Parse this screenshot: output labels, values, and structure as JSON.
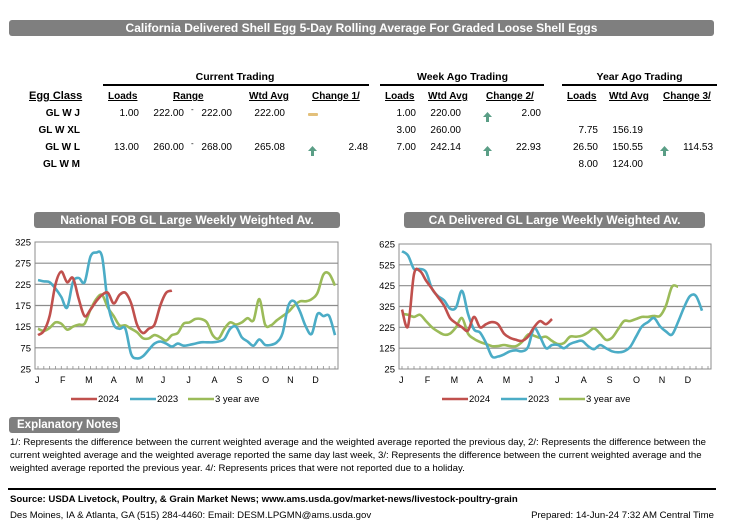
{
  "title": "California Delivered Shell Egg 5-Day Rolling Average For Graded Loose Shell Eggs",
  "table": {
    "groups": [
      "Current Trading",
      "Week Ago Trading",
      "Year Ago Trading"
    ],
    "headers": {
      "egg_class": "Egg Class",
      "current": [
        "Loads",
        "Range",
        "Wtd Avg",
        "Change 1/"
      ],
      "week_ago": [
        "Loads",
        "Wtd Avg",
        "Change 2/"
      ],
      "year_ago": [
        "Loads",
        "Wtd Avg",
        "Change 3/"
      ]
    },
    "range_sep": "-",
    "rows": [
      {
        "class": "GL W J",
        "cur_loads": "1.00",
        "cur_low": "222.00",
        "cur_high": "222.00",
        "cur_wtd": "222.00",
        "cur_change_icon": "unchanged-icon",
        "cur_change": "",
        "wk_loads": "1.00",
        "wk_wtd": "220.00",
        "wk_change_icon": "up-arrow-icon",
        "wk_change": "2.00",
        "yr_loads": "",
        "yr_wtd": "",
        "yr_change_icon": "",
        "yr_change": ""
      },
      {
        "class": "GL W XL",
        "cur_loads": "",
        "cur_low": "",
        "cur_high": "",
        "cur_wtd": "",
        "cur_change_icon": "",
        "cur_change": "",
        "wk_loads": "3.00",
        "wk_wtd": "260.00",
        "wk_change_icon": "",
        "wk_change": "",
        "yr_loads": "7.75",
        "yr_wtd": "156.19",
        "yr_change_icon": "",
        "yr_change": ""
      },
      {
        "class": "GL W L",
        "cur_loads": "13.00",
        "cur_low": "260.00",
        "cur_high": "268.00",
        "cur_wtd": "265.08",
        "cur_change_icon": "up-arrow-icon",
        "cur_change": "2.48",
        "wk_loads": "7.00",
        "wk_wtd": "242.14",
        "wk_change_icon": "up-arrow-icon",
        "wk_change": "22.93",
        "yr_loads": "26.50",
        "yr_wtd": "150.55",
        "yr_change_icon": "up-arrow-icon",
        "yr_change": "114.53"
      },
      {
        "class": "GL W M",
        "cur_loads": "",
        "cur_low": "",
        "cur_high": "",
        "cur_wtd": "",
        "cur_change_icon": "",
        "cur_change": "",
        "wk_loads": "",
        "wk_wtd": "",
        "wk_change_icon": "",
        "wk_change": "",
        "yr_loads": "8.00",
        "yr_wtd": "124.00",
        "yr_change_icon": "",
        "yr_change": ""
      }
    ]
  },
  "colors": {
    "header_bar": "#7f7f7f",
    "series_2024": "#c0504d",
    "series_2023": "#4bacc6",
    "series_3yr": "#9bbb59",
    "up_arrow": "#5a9e86",
    "unchanged": "#e3c07a"
  },
  "chart_data": [
    {
      "type": "line",
      "title": "National FOB GL Large  Weekly Weighted Av.",
      "xlabel": "",
      "ylabel": "",
      "ylim": [
        25,
        325
      ],
      "yticks": [
        "325",
        "275",
        "225",
        "175",
        "125",
        "75",
        "25"
      ],
      "ytick_values": [
        325,
        275,
        225,
        175,
        125,
        75,
        25
      ],
      "month_labels": [
        "J",
        "F",
        "M",
        "A",
        "M",
        "J",
        "J",
        "A",
        "S",
        "O",
        "N",
        "D"
      ],
      "grid": true,
      "legend": "bottom",
      "x_unit": "week",
      "series": [
        {
          "name": "2024",
          "values": [
            105,
            115,
            150,
            225,
            255,
            230,
            240,
            190,
            150,
            165,
            185,
            200,
            205,
            180,
            200,
            205,
            180,
            130,
            110,
            120,
            130,
            175,
            205,
            210
          ]
        },
        {
          "name": "2023",
          "values": [
            235,
            232,
            230,
            215,
            195,
            170,
            230,
            240,
            230,
            290,
            300,
            290,
            180,
            130,
            120,
            120,
            60,
            50,
            55,
            70,
            85,
            90,
            85,
            78,
            85,
            80,
            82,
            85,
            88,
            88,
            88,
            90,
            96,
            120,
            125,
            100,
            90,
            80,
            95,
            82,
            82,
            88,
            110,
            175,
            185,
            160,
            125,
            108,
            155,
            150,
            150,
            105
          ]
        },
        {
          "name": "3 year ave",
          "values": [
            120,
            115,
            122,
            135,
            132,
            118,
            125,
            130,
            132,
            165,
            190,
            200,
            170,
            150,
            128,
            128,
            120,
            112,
            98,
            97,
            105,
            100,
            92,
            105,
            110,
            132,
            135,
            143,
            143,
            135,
            105,
            97,
            120,
            135,
            130,
            135,
            145,
            140,
            190,
            130,
            128,
            140,
            150,
            160,
            175,
            185,
            185,
            190,
            205,
            248,
            250,
            222
          ]
        }
      ]
    },
    {
      "type": "line",
      "title": "CA Delivered GL Large Weekly Weighted Av.",
      "xlabel": "",
      "ylabel": "",
      "ylim": [
        25,
        625
      ],
      "yticks": [
        "625",
        "525",
        "425",
        "325",
        "225",
        "125",
        "25"
      ],
      "ytick_values": [
        625,
        525,
        425,
        325,
        225,
        125,
        25
      ],
      "month_labels": [
        "J",
        "F",
        "M",
        "A",
        "M",
        "J",
        "J",
        "A",
        "S",
        "O",
        "N",
        "D"
      ],
      "grid": true,
      "legend": "bottom",
      "x_unit": "week",
      "series": [
        {
          "name": "2024",
          "values": [
            310,
            230,
            480,
            495,
            450,
            410,
            370,
            330,
            270,
            245,
            225,
            210,
            275,
            225,
            240,
            250,
            240,
            195,
            175,
            165,
            160,
            180,
            225,
            255,
            240,
            265
          ]
        },
        {
          "name": "2023",
          "values": [
            590,
            570,
            505,
            505,
            490,
            410,
            375,
            355,
            315,
            320,
            400,
            290,
            215,
            200,
            150,
            85,
            85,
            95,
            110,
            115,
            110,
            130,
            220,
            180,
            125,
            140,
            140,
            125,
            145,
            155,
            160,
            135,
            120,
            140,
            125,
            110,
            105,
            110,
            130,
            180,
            230,
            250,
            270,
            230,
            205,
            190,
            250,
            320,
            375,
            375,
            305
          ]
        },
        {
          "name": "3 year ave",
          "values": [
            290,
            285,
            275,
            285,
            255,
            225,
            205,
            190,
            195,
            225,
            270,
            195,
            170,
            155,
            145,
            135,
            135,
            140,
            135,
            135,
            155,
            190,
            185,
            175,
            180,
            160,
            145,
            150,
            180,
            180,
            185,
            200,
            220,
            195,
            165,
            175,
            215,
            255,
            255,
            265,
            275,
            275,
            280,
            280,
            330,
            420,
            420
          ]
        }
      ]
    }
  ],
  "notes": {
    "header": "Explanatory Notes",
    "text": "1/: Represents the difference between the current weighted average and the weighted average reported the previous day, 2/: Represents the difference between the current weighted average and the weighted average reported the same day last week, 3/: Represents the difference between the current weighted average and the weighted average reported the previous year. 4/: Represents prices that were not reported due to a holiday."
  },
  "footer": {
    "source": "Source: USDA Livetock, Poultry, & Grain Market News; www.ams.usda.gov/market-news/livestock-poultry-grain",
    "contact": "Des Moines, IA & Atlanta, GA  (515) 284-4460:  Email: DESM.LPGMN@ams.usda.gov",
    "prepared": "Prepared: 14-Jun-24 7:32 AM Central Time"
  }
}
